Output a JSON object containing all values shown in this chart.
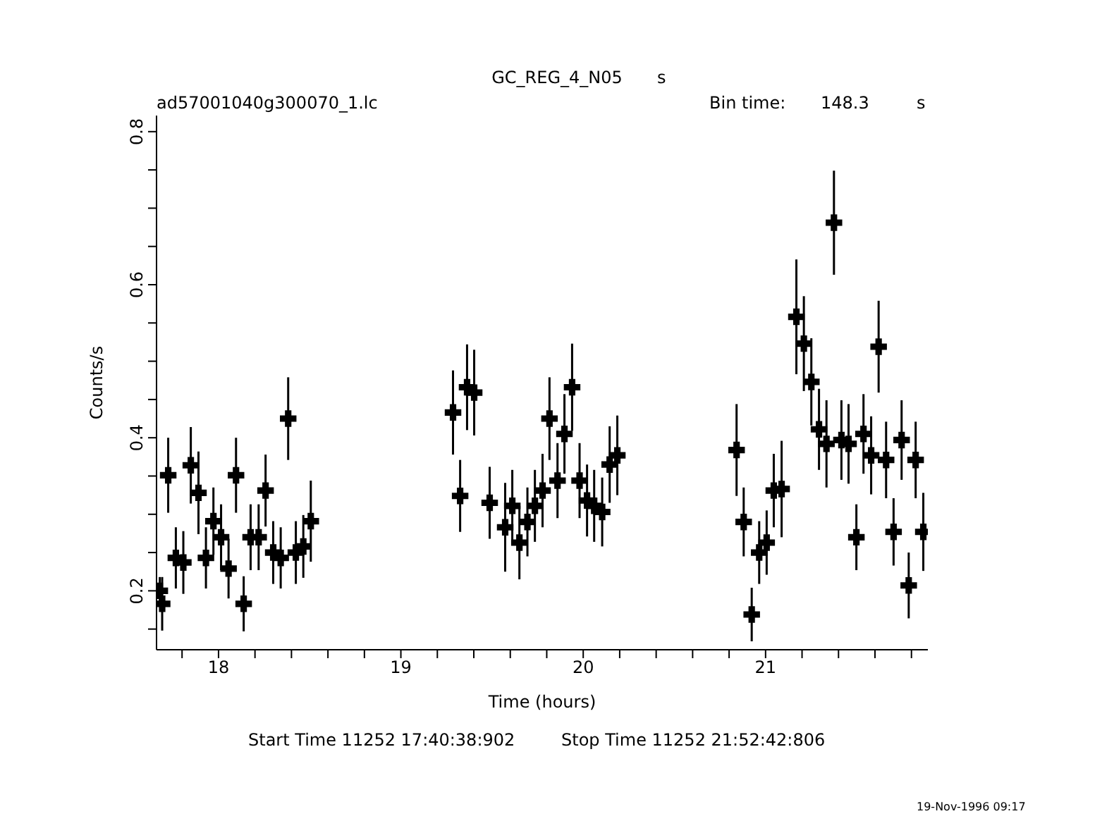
{
  "chart_data": {
    "type": "scatter",
    "title": "GC_REG_4_N05",
    "subtitle": "ad57001040g300070_1.lc",
    "xlabel": "Time (hours)",
    "ylabel": "Counts/s",
    "annotations": [
      "s",
      "Bin time:",
      "148.3",
      "s",
      "Start Time 11252 17:40:38:902",
      "Stop Time 11252 21:52:42:806",
      "19-Nov-1996 09:17"
    ],
    "xlim": [
      17.66,
      21.89
    ],
    "ylim": [
      0.123,
      0.821
    ],
    "xticks": [
      {
        "value": 17.8,
        "label": null
      },
      18,
      {
        "value": 18.2,
        "label": null
      },
      {
        "value": 18.4,
        "label": null
      },
      {
        "value": 18.6,
        "label": null
      },
      {
        "value": 18.8,
        "label": null
      },
      19,
      {
        "value": 19.2,
        "label": null
      },
      {
        "value": 19.4,
        "label": null
      },
      {
        "value": 19.6,
        "label": null
      },
      {
        "value": 19.8,
        "label": null
      },
      20,
      {
        "value": 20.2,
        "label": null
      },
      {
        "value": 20.4,
        "label": null
      },
      {
        "value": 20.6,
        "label": null
      },
      {
        "value": 20.8,
        "label": null
      },
      21,
      {
        "value": 21.2,
        "label": null
      },
      {
        "value": 21.4,
        "label": null
      },
      {
        "value": 21.6,
        "label": null
      },
      {
        "value": 21.8,
        "label": null
      }
    ],
    "yticks": [
      {
        "value": 0.15,
        "label": null
      },
      {
        "value": 0.2,
        "label": "0.2"
      },
      {
        "value": 0.25,
        "label": null
      },
      {
        "value": 0.3,
        "label": null
      },
      {
        "value": 0.35,
        "label": null
      },
      {
        "value": 0.4,
        "label": "0.4"
      },
      {
        "value": 0.45,
        "label": null
      },
      {
        "value": 0.5,
        "label": null
      },
      {
        "value": 0.55,
        "label": null
      },
      {
        "value": 0.6,
        "label": "0.6"
      },
      {
        "value": 0.65,
        "label": null
      },
      {
        "value": 0.7,
        "label": null
      },
      {
        "value": 0.75,
        "label": null
      },
      {
        "value": 0.8,
        "label": "0.8"
      }
    ],
    "grid": false,
    "marker": "cross",
    "series": [
      {
        "color": "#000000",
        "x": [
          17.678,
          17.691,
          17.724,
          17.766,
          17.807,
          17.848,
          17.89,
          17.931,
          17.972,
          18.014,
          18.055,
          18.096,
          18.138,
          18.176,
          18.22,
          18.258,
          18.3,
          18.341,
          18.382,
          18.424,
          18.465,
          18.506,
          19.286,
          19.325,
          19.363,
          19.402,
          19.487,
          19.572,
          19.611,
          19.65,
          19.694,
          19.735,
          19.777,
          19.815,
          19.859,
          19.897,
          19.939,
          19.98,
          20.021,
          20.06,
          20.104,
          20.145,
          20.187,
          20.841,
          20.88,
          20.924,
          20.965,
          21.006,
          21.045,
          21.088,
          21.169,
          21.21,
          21.251,
          21.293,
          21.334,
          21.375,
          21.416,
          21.455,
          21.498,
          21.537,
          21.579,
          21.62,
          21.661,
          21.702,
          21.746,
          21.785,
          21.823,
          21.865
        ],
        "values": [
          0.2,
          0.183,
          0.351,
          0.243,
          0.237,
          0.364,
          0.328,
          0.243,
          0.291,
          0.27,
          0.229,
          0.351,
          0.183,
          0.27,
          0.27,
          0.331,
          0.25,
          0.243,
          0.425,
          0.25,
          0.258,
          0.291,
          0.433,
          0.324,
          0.466,
          0.459,
          0.315,
          0.283,
          0.311,
          0.263,
          0.29,
          0.311,
          0.331,
          0.425,
          0.344,
          0.405,
          0.466,
          0.344,
          0.318,
          0.311,
          0.303,
          0.365,
          0.377,
          0.384,
          0.29,
          0.169,
          0.25,
          0.263,
          0.331,
          0.333,
          0.558,
          0.523,
          0.473,
          0.411,
          0.392,
          0.681,
          0.397,
          0.392,
          0.27,
          0.405,
          0.377,
          0.519,
          0.371,
          0.277,
          0.397,
          0.207,
          0.371,
          0.277
        ],
        "errors": [
          0.018,
          0.035,
          0.049,
          0.04,
          0.041,
          0.05,
          0.054,
          0.04,
          0.044,
          0.043,
          0.039,
          0.049,
          0.036,
          0.043,
          0.043,
          0.047,
          0.041,
          0.04,
          0.054,
          0.041,
          0.041,
          0.053,
          0.055,
          0.047,
          0.056,
          0.056,
          0.047,
          0.058,
          0.047,
          0.048,
          0.045,
          0.047,
          0.048,
          0.054,
          0.049,
          0.052,
          0.057,
          0.049,
          0.047,
          0.047,
          0.045,
          0.05,
          0.052,
          0.06,
          0.045,
          0.035,
          0.041,
          0.042,
          0.048,
          0.063,
          0.075,
          0.062,
          0.057,
          0.053,
          0.057,
          0.068,
          0.052,
          0.052,
          0.043,
          0.052,
          0.051,
          0.06,
          0.05,
          0.044,
          0.052,
          0.043,
          0.05,
          0.051
        ]
      }
    ]
  }
}
